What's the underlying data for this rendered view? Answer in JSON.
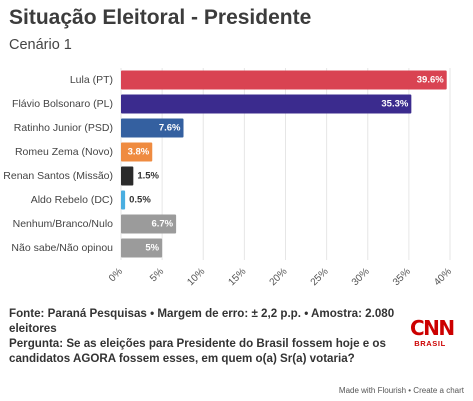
{
  "title": "Situação Eleitoral - Presidente",
  "subtitle": "Cenário 1",
  "chart_data": {
    "type": "bar",
    "orientation": "horizontal",
    "categories": [
      "Lula (PT)",
      "Flávio Bolsonaro (PL)",
      "Ratinho Junior (PSD)",
      "Romeu Zema (Novo)",
      "Renan Santos (Missão)",
      "Aldo Rebelo (DC)",
      "Nenhum/Branco/Nulo",
      "Não sabe/Não opinou"
    ],
    "values": [
      39.6,
      35.3,
      7.6,
      3.8,
      1.5,
      0.5,
      6.7,
      5
    ],
    "value_labels": [
      "39.6%",
      "35.3%",
      "7.6%",
      "3.8%",
      "1.5%",
      "0.5%",
      "6.7%",
      "5%"
    ],
    "colors": [
      "#d94352",
      "#3b2b8e",
      "#3460a0",
      "#ef8b40",
      "#2a2a2a",
      "#4aaee0",
      "#9b9b9b",
      "#9b9b9b"
    ],
    "xlim": [
      0,
      40
    ],
    "xticks": [
      "0%",
      "5%",
      "10%",
      "15%",
      "20%",
      "25%",
      "30%",
      "35%",
      "40%"
    ],
    "grid": true
  },
  "footer": {
    "source": "Fonte: Paraná Pesquisas • Margem de erro: ± 2,2 p.p. • Amostra: 2.080 eleitores",
    "question": "Pergunta: Se as eleições para Presidente do Brasil fossem hoje e os candidatos AGORA fossem esses, em quem o(a) Sr(a) votaria?"
  },
  "logo": {
    "word": "CNN",
    "sub": "BRASIL"
  },
  "credit": "Made with Flourish • Create a chart"
}
